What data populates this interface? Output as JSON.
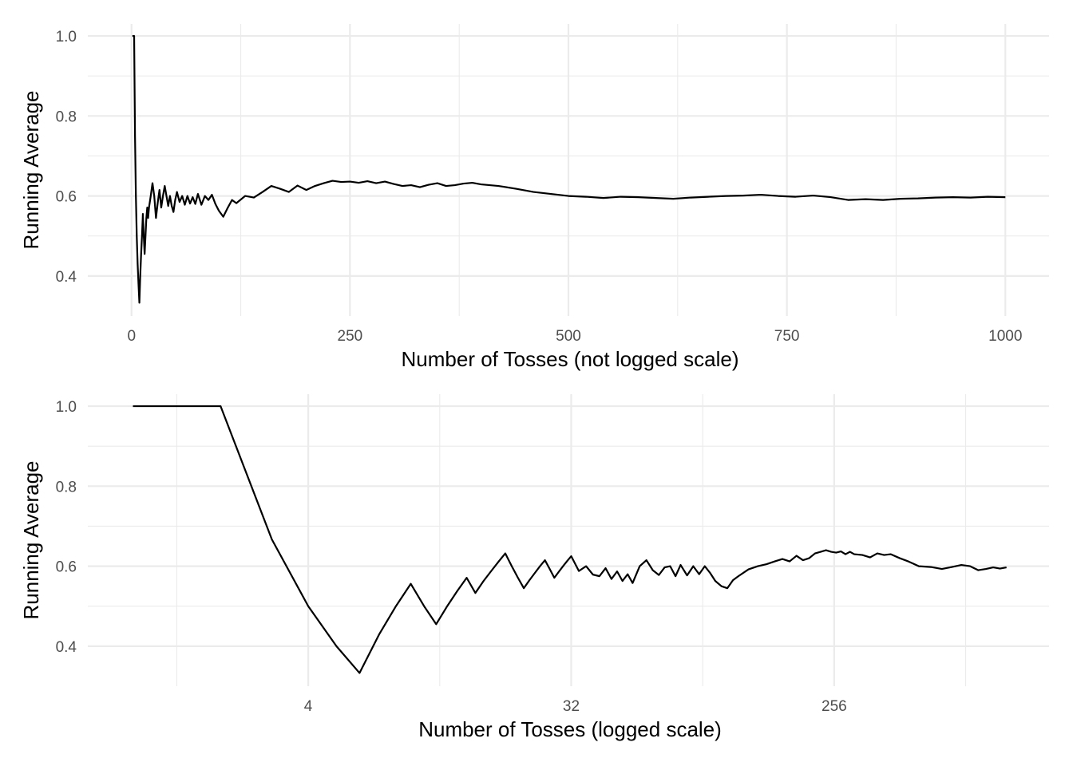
{
  "chart_data": [
    {
      "type": "line",
      "xlabel": "Number of Tosses (not logged scale)",
      "ylabel": "Running Average",
      "x_scale": "linear",
      "xlim": [
        -50,
        1050
      ],
      "ylim": [
        0.3,
        1.03
      ],
      "x_ticks": [
        0,
        250,
        500,
        750,
        1000
      ],
      "x_tick_labels": [
        "0",
        "250",
        "500",
        "750",
        "1000"
      ],
      "x_minor_ticks": [
        125,
        375,
        625,
        875
      ],
      "y_ticks": [
        0.4,
        0.6,
        0.8,
        1.0
      ],
      "y_tick_labels": [
        "0.4",
        "0.6",
        "0.8",
        "1.0"
      ],
      "y_minor_ticks": [
        0.5,
        0.7,
        0.9
      ],
      "grid": true,
      "series": [
        {
          "x": [
            1,
            2,
            3,
            4,
            5,
            6,
            7,
            8,
            9,
            10,
            11,
            12,
            13,
            14,
            15,
            16,
            17,
            18,
            19,
            20,
            22,
            24,
            26,
            28,
            30,
            32,
            34,
            36,
            38,
            40,
            42,
            44,
            46,
            48,
            50,
            52,
            55,
            58,
            61,
            64,
            67,
            70,
            73,
            76,
            80,
            84,
            88,
            92,
            96,
            100,
            105,
            110,
            115,
            120,
            130,
            140,
            150,
            160,
            170,
            180,
            190,
            200,
            210,
            220,
            230,
            240,
            250,
            260,
            270,
            280,
            290,
            300,
            310,
            320,
            330,
            340,
            350,
            360,
            370,
            380,
            390,
            400,
            420,
            440,
            460,
            480,
            500,
            520,
            540,
            560,
            580,
            600,
            620,
            640,
            660,
            680,
            700,
            720,
            740,
            760,
            780,
            800,
            820,
            840,
            860,
            880,
            900,
            920,
            940,
            960,
            980,
            1000
          ],
          "y": [
            1.0,
            1.0,
            1.0,
            0.75,
            0.6,
            0.5,
            0.43,
            0.38,
            0.333,
            0.4,
            0.455,
            0.5,
            0.555,
            0.5,
            0.455,
            0.5,
            0.545,
            0.571,
            0.545,
            0.571,
            0.6,
            0.632,
            0.6,
            0.545,
            0.583,
            0.615,
            0.571,
            0.6,
            0.625,
            0.6,
            0.575,
            0.6,
            0.575,
            0.56,
            0.59,
            0.61,
            0.585,
            0.6,
            0.578,
            0.6,
            0.581,
            0.597,
            0.58,
            0.605,
            0.578,
            0.6,
            0.59,
            0.603,
            0.58,
            0.563,
            0.548,
            0.57,
            0.59,
            0.582,
            0.6,
            0.596,
            0.61,
            0.625,
            0.618,
            0.61,
            0.626,
            0.615,
            0.625,
            0.632,
            0.638,
            0.635,
            0.636,
            0.633,
            0.637,
            0.632,
            0.636,
            0.63,
            0.625,
            0.627,
            0.622,
            0.628,
            0.632,
            0.625,
            0.627,
            0.631,
            0.633,
            0.629,
            0.625,
            0.618,
            0.61,
            0.605,
            0.6,
            0.598,
            0.595,
            0.598,
            0.597,
            0.595,
            0.593,
            0.596,
            0.598,
            0.6,
            0.601,
            0.603,
            0.6,
            0.598,
            0.601,
            0.597,
            0.59,
            0.592,
            0.59,
            0.593,
            0.594,
            0.596,
            0.597,
            0.596,
            0.598,
            0.597
          ]
        }
      ]
    },
    {
      "type": "line",
      "xlabel": "Number of Tosses (logged scale)",
      "ylabel": "Running Average",
      "x_scale": "log2",
      "xlim": [
        0.7,
        1400
      ],
      "ylim": [
        0.3,
        1.03
      ],
      "x_ticks": [
        4,
        32,
        256
      ],
      "x_tick_labels": [
        "4",
        "32",
        "256"
      ],
      "x_minor_ticks": [
        1.4142,
        11.3137,
        90.5097,
        724.0773
      ],
      "y_ticks": [
        0.4,
        0.6,
        0.8,
        1.0
      ],
      "y_tick_labels": [
        "0.4",
        "0.6",
        "0.8",
        "1.0"
      ],
      "y_minor_ticks": [
        0.5,
        0.7,
        0.9
      ],
      "grid": true,
      "series": [
        {
          "x": [
            1,
            2,
            3,
            4,
            5,
            6,
            7,
            8,
            9,
            10,
            11,
            12,
            13,
            14,
            15,
            16,
            17,
            18,
            19,
            20,
            21,
            22,
            23,
            24,
            25,
            26,
            27,
            28,
            29,
            30,
            31,
            32,
            34,
            36,
            38,
            40,
            42,
            44,
            46,
            48,
            50,
            52,
            55,
            58,
            61,
            64,
            67,
            70,
            73,
            76,
            80,
            84,
            88,
            92,
            96,
            100,
            105,
            110,
            115,
            120,
            130,
            140,
            150,
            160,
            170,
            180,
            190,
            200,
            210,
            220,
            230,
            240,
            250,
            260,
            270,
            280,
            290,
            300,
            320,
            340,
            360,
            380,
            400,
            430,
            460,
            500,
            550,
            600,
            650,
            700,
            750,
            800,
            850,
            900,
            950,
            1000
          ],
          "y": [
            1.0,
            1.0,
            0.667,
            0.5,
            0.4,
            0.333,
            0.429,
            0.5,
            0.556,
            0.5,
            0.455,
            0.5,
            0.538,
            0.571,
            0.533,
            0.563,
            0.588,
            0.611,
            0.632,
            0.6,
            0.571,
            0.545,
            0.565,
            0.583,
            0.6,
            0.615,
            0.593,
            0.571,
            0.586,
            0.6,
            0.613,
            0.625,
            0.588,
            0.6,
            0.579,
            0.575,
            0.595,
            0.568,
            0.587,
            0.563,
            0.58,
            0.558,
            0.6,
            0.615,
            0.59,
            0.578,
            0.597,
            0.6,
            0.575,
            0.603,
            0.577,
            0.6,
            0.58,
            0.6,
            0.583,
            0.563,
            0.55,
            0.545,
            0.565,
            0.575,
            0.592,
            0.6,
            0.605,
            0.612,
            0.618,
            0.612,
            0.626,
            0.615,
            0.62,
            0.632,
            0.636,
            0.64,
            0.636,
            0.634,
            0.637,
            0.63,
            0.636,
            0.63,
            0.628,
            0.622,
            0.632,
            0.628,
            0.63,
            0.62,
            0.612,
            0.6,
            0.598,
            0.593,
            0.598,
            0.603,
            0.6,
            0.59,
            0.593,
            0.597,
            0.594,
            0.597
          ]
        }
      ]
    }
  ]
}
